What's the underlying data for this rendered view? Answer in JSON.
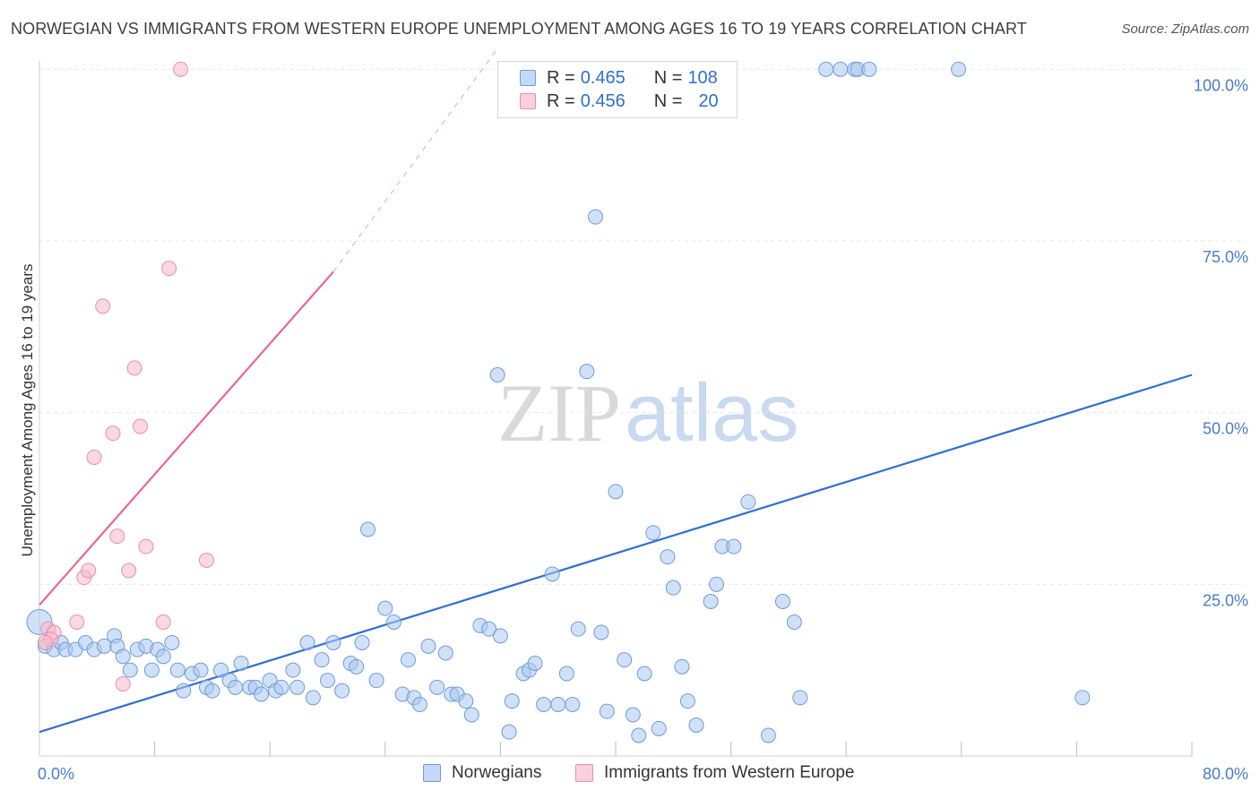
{
  "title": "NORWEGIAN VS IMMIGRANTS FROM WESTERN EUROPE UNEMPLOYMENT AMONG AGES 16 TO 19 YEARS CORRELATION CHART",
  "source": "Source: ZipAtlas.com",
  "watermark": {
    "zip": "ZIP",
    "atlas": "atlas"
  },
  "legend": {
    "rows": [
      {
        "r_label": "R =",
        "r_value": "0.465",
        "n_label": "N =",
        "n_value": "108",
        "color": "#a9c8f0"
      },
      {
        "r_label": "R =",
        "r_value": "0.456",
        "n_label": "N =",
        "n_value": "20",
        "color": "#f7b8cb"
      }
    ]
  },
  "chart_data": {
    "type": "scatter",
    "title": "NORWEGIAN VS IMMIGRANTS FROM WESTERN EUROPE UNEMPLOYMENT AMONG AGES 16 TO 19 YEARS CORRELATION CHART",
    "xlabel": "",
    "ylabel": "Unemployment Among Ages 16 to 19 years",
    "xlim": [
      0,
      80
    ],
    "ylim": [
      0,
      102
    ],
    "x_tick_labels": [
      {
        "value": 0,
        "label": "0.0%"
      },
      {
        "value": 80,
        "label": "80.0%"
      }
    ],
    "y_ticks": [
      {
        "value": 25,
        "label": "25.0%"
      },
      {
        "value": 50,
        "label": "50.0%"
      },
      {
        "value": 75,
        "label": "75.0%"
      },
      {
        "value": 100,
        "label": "100.0%"
      }
    ],
    "legend_position": "bottom",
    "series": [
      {
        "name": "Norwegians",
        "color": "#a9c8f0",
        "stroke": "#6f9bd8",
        "trend_color": "#2f6fcf",
        "trend": {
          "x0": 0,
          "y0": 3.5,
          "x1": 80,
          "y1": 55.5,
          "dashed_from": null
        },
        "points": [
          [
            0.0,
            19.5
          ],
          [
            0.4,
            16.0
          ],
          [
            1.0,
            15.5
          ],
          [
            1.5,
            16.5
          ],
          [
            1.8,
            15.5
          ],
          [
            2.5,
            15.5
          ],
          [
            3.2,
            16.5
          ],
          [
            3.8,
            15.5
          ],
          [
            4.5,
            16.0
          ],
          [
            5.2,
            17.5
          ],
          [
            5.4,
            16.0
          ],
          [
            5.8,
            14.5
          ],
          [
            6.3,
            12.5
          ],
          [
            6.8,
            15.5
          ],
          [
            7.4,
            16.0
          ],
          [
            7.8,
            12.5
          ],
          [
            8.2,
            15.5
          ],
          [
            8.6,
            14.5
          ],
          [
            9.2,
            16.5
          ],
          [
            9.6,
            12.5
          ],
          [
            10.0,
            9.5
          ],
          [
            10.6,
            12.0
          ],
          [
            11.2,
            12.5
          ],
          [
            11.6,
            10.0
          ],
          [
            12.0,
            9.5
          ],
          [
            12.6,
            12.5
          ],
          [
            13.2,
            11.0
          ],
          [
            13.6,
            10.0
          ],
          [
            14.0,
            13.5
          ],
          [
            14.6,
            10.0
          ],
          [
            15.0,
            10.0
          ],
          [
            15.4,
            9.0
          ],
          [
            16.0,
            11.0
          ],
          [
            16.4,
            9.5
          ],
          [
            16.8,
            10.0
          ],
          [
            17.6,
            12.5
          ],
          [
            17.9,
            10.0
          ],
          [
            18.6,
            16.5
          ],
          [
            19.0,
            8.5
          ],
          [
            19.6,
            14.0
          ],
          [
            20.0,
            11.0
          ],
          [
            20.4,
            16.5
          ],
          [
            21.0,
            9.5
          ],
          [
            21.6,
            13.5
          ],
          [
            22.0,
            13.0
          ],
          [
            22.4,
            16.5
          ],
          [
            22.8,
            33.0
          ],
          [
            23.4,
            11.0
          ],
          [
            24.0,
            21.5
          ],
          [
            24.6,
            19.5
          ],
          [
            25.2,
            9.0
          ],
          [
            25.6,
            14.0
          ],
          [
            26.0,
            8.5
          ],
          [
            26.4,
            7.5
          ],
          [
            27.0,
            16.0
          ],
          [
            27.6,
            10.0
          ],
          [
            28.2,
            15.0
          ],
          [
            28.6,
            9.0
          ],
          [
            29.0,
            9.0
          ],
          [
            29.6,
            8.0
          ],
          [
            30.0,
            6.0
          ],
          [
            30.6,
            19.0
          ],
          [
            31.2,
            18.5
          ],
          [
            31.8,
            55.5
          ],
          [
            32.0,
            17.5
          ],
          [
            32.6,
            3.5
          ],
          [
            32.8,
            8.0
          ],
          [
            33.6,
            12.0
          ],
          [
            34.0,
            12.5
          ],
          [
            34.4,
            13.5
          ],
          [
            35.0,
            7.5
          ],
          [
            35.6,
            26.5
          ],
          [
            36.0,
            7.5
          ],
          [
            36.6,
            12.0
          ],
          [
            37.0,
            7.5
          ],
          [
            37.4,
            18.5
          ],
          [
            38.0,
            56.0
          ],
          [
            38.6,
            78.5
          ],
          [
            39.0,
            18.0
          ],
          [
            39.4,
            6.5
          ],
          [
            40.0,
            38.5
          ],
          [
            40.6,
            14.0
          ],
          [
            41.2,
            6.0
          ],
          [
            41.6,
            3.0
          ],
          [
            42.0,
            12.0
          ],
          [
            42.6,
            32.5
          ],
          [
            43.0,
            4.0
          ],
          [
            43.6,
            29.0
          ],
          [
            44.0,
            24.5
          ],
          [
            44.6,
            13.0
          ],
          [
            45.0,
            8.0
          ],
          [
            45.6,
            4.5
          ],
          [
            46.6,
            22.5
          ],
          [
            47.0,
            25.0
          ],
          [
            47.4,
            30.5
          ],
          [
            48.2,
            30.5
          ],
          [
            49.2,
            37.0
          ],
          [
            50.6,
            3.0
          ],
          [
            51.6,
            22.5
          ],
          [
            52.4,
            19.5
          ],
          [
            52.8,
            8.5
          ],
          [
            54.6,
            100.0
          ],
          [
            55.6,
            100.0
          ],
          [
            56.6,
            100.0
          ],
          [
            56.8,
            100.0
          ],
          [
            57.6,
            100.0
          ],
          [
            63.8,
            100.0
          ],
          [
            72.4,
            8.5
          ]
        ]
      },
      {
        "name": "Immigrants from Western Europe",
        "color": "#f7b8cb",
        "stroke": "#e690a9",
        "trend_color": "#e8688f",
        "trend": {
          "x0": 0,
          "y0": 22.0,
          "x1": 20.4,
          "y1": 70.5,
          "dash_x1": 31.8,
          "dash_y1": 103.0
        },
        "points": [
          [
            0.6,
            18.5
          ],
          [
            1.0,
            18.0
          ],
          [
            2.6,
            19.5
          ],
          [
            3.1,
            26.0
          ],
          [
            3.4,
            27.0
          ],
          [
            3.8,
            43.5
          ],
          [
            4.4,
            65.5
          ],
          [
            5.1,
            47.0
          ],
          [
            5.4,
            32.0
          ],
          [
            5.8,
            10.5
          ],
          [
            6.2,
            27.0
          ],
          [
            6.6,
            56.5
          ],
          [
            7.0,
            48.0
          ],
          [
            7.4,
            30.5
          ],
          [
            8.6,
            19.5
          ],
          [
            9.0,
            71.0
          ],
          [
            9.8,
            100.0
          ],
          [
            11.6,
            28.5
          ],
          [
            0.8,
            17.0
          ],
          [
            0.4,
            16.5
          ]
        ]
      }
    ]
  },
  "bottom_legend": [
    {
      "label": "Norwegians",
      "color": "#a9c8f0"
    },
    {
      "label": "Immigrants from Western Europe",
      "color": "#f7b8cb"
    }
  ]
}
